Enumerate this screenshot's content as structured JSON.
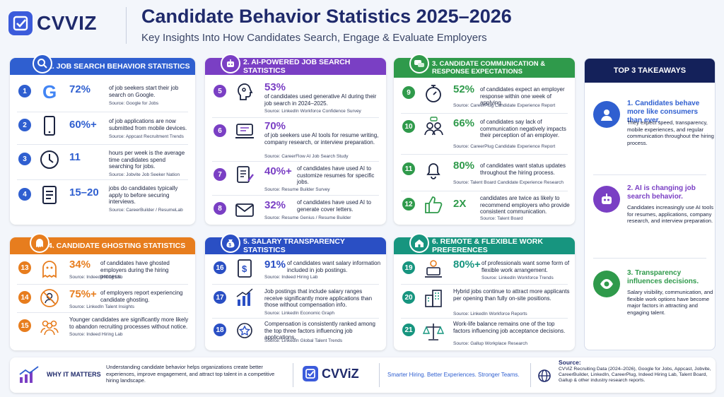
{
  "brand": {
    "name": "CVVIZ"
  },
  "header": {
    "title": "Candidate Behavior Statistics 2025–2026",
    "subtitle": "Key Insights Into How Candidates Search, Engage & Evaluate Employers"
  },
  "sections": [
    {
      "title": "1. JOB SEARCH BEHAVIOR STATISTICS",
      "icon": "search-icon",
      "items": [
        {
          "num": "1",
          "icon": "google-icon",
          "stat": "72%",
          "desc": "of job seekers start their job search on Google.",
          "source": "Source: Google for Jobs"
        },
        {
          "num": "2",
          "icon": "smartphone-icon",
          "stat": "60%+",
          "desc": "of job applications are now submitted from mobile devices.",
          "source": "Source: Appcast Recruitment Trends"
        },
        {
          "num": "3",
          "icon": "clock-icon",
          "stat": "11",
          "desc": "hours per week is the average time candidates spend searching for jobs.",
          "source": "Source: Jobvite Job Seeker Nation"
        },
        {
          "num": "4",
          "icon": "document-list-icon",
          "stat": "15–20",
          "desc": "jobs do candidates typically apply to before securing interviews.",
          "source": "Source: CareerBuilder / ResumeLab"
        }
      ]
    },
    {
      "title": "2. AI-POWERED JOB SEARCH STATISTICS",
      "icon": "robot-icon",
      "items": [
        {
          "num": "5",
          "icon": "ai-brain-icon",
          "stat": "53%",
          "desc": "of candidates used generative AI during their job search in 2024–2025.",
          "source": "Source: LinkedIn Workforce Confidence Survey"
        },
        {
          "num": "6",
          "icon": "chat-laptop-icon",
          "stat": "70%",
          "desc": "of job seekers use AI tools for resume writing, company research, or interview preparation.",
          "source": "Source: CareerFlow AI Job Search Study"
        },
        {
          "num": "7",
          "icon": "resume-edit-icon",
          "stat": "40%+",
          "desc": "of candidates have used AI to customize resumes for specific jobs.",
          "source": "Source: Resume Builder Survey"
        },
        {
          "num": "8",
          "icon": "envelope-icon",
          "stat": "32%",
          "desc": "of candidates have used AI to generate cover letters.",
          "source": "Source: Resume Genius / Resume Builder"
        }
      ]
    },
    {
      "title": "3. CANDIDATE COMMUNICATION & RESPONSE EXPECTATIONS",
      "icon": "chat-bubbles-icon",
      "items": [
        {
          "num": "9",
          "icon": "stopwatch-icon",
          "stat": "52%",
          "desc": "of candidates expect an employer response within one week of applying.",
          "source": "Source: CareerPlug Candidate Experience Report"
        },
        {
          "num": "10",
          "icon": "people-chat-icon",
          "stat": "66%",
          "desc": "of candidates say lack of communication negatively impacts their perception of an employer.",
          "source": "Source: CareerPlug Candidate Experience Report"
        },
        {
          "num": "11",
          "icon": "bell-icon",
          "stat": "80%",
          "desc": "of candidates want status updates throughout the hiring process.",
          "source": "Source: Talent Board Candidate Experience Research"
        },
        {
          "num": "12",
          "icon": "thumbs-up-icon",
          "stat": "2X",
          "desc": "candidates are twice as likely to recommend employers who provide consistent communication.",
          "source": "Source: Talent Board"
        }
      ]
    },
    {
      "title": "4. CANDIDATE GHOSTING STATISTICS",
      "icon": "ghost-icon",
      "items": [
        {
          "num": "13",
          "icon": "ghost-icon",
          "stat": "34%",
          "desc": "of candidates have ghosted employers during the hiring process.",
          "source": "Source: Indeed Hiring Lab"
        },
        {
          "num": "14",
          "icon": "no-person-icon",
          "stat": "75%+",
          "desc": "of employers report experiencing candidate ghosting.",
          "source": "Source: LinkedIn Talent Insights"
        },
        {
          "num": "15",
          "icon": "group-icon",
          "stat": "",
          "desc": "Younger candidates are significantly more likely to abandon recruiting processes without notice.",
          "source": "Source: Indeed Hiring Lab"
        }
      ]
    },
    {
      "title": "5. SALARY TRANSPARENCY STATISTICS",
      "icon": "money-bag-icon",
      "items": [
        {
          "num": "16",
          "icon": "salary-document-icon",
          "stat": "91%",
          "desc": "of candidates want salary information included in job postings.",
          "source": "Source: Indeed Hiring Lab"
        },
        {
          "num": "17",
          "icon": "bar-chart-icon",
          "stat": "",
          "desc": "Job postings that include salary ranges receive significantly more applications than those without compensation info.",
          "source": "Source: LinkedIn Economic Graph"
        },
        {
          "num": "18",
          "icon": "star-badge-icon",
          "stat": "",
          "desc": "Compensation is consistently ranked among the top three factors influencing job applications.",
          "source": "Source: LinkedIn Global Talent Trends"
        }
      ]
    },
    {
      "title": "6. REMOTE & FLEXIBLE WORK PREFERENCES",
      "icon": "home-icon",
      "items": [
        {
          "num": "19",
          "icon": "remote-worker-icon",
          "stat": "80%+",
          "desc": "of professionals want some form of flexible work arrangement.",
          "source": "Source: LinkedIn Workforce Trends"
        },
        {
          "num": "20",
          "icon": "office-building-icon",
          "stat": "",
          "desc": "Hybrid jobs continue to attract more applicants per opening than fully on-site positions.",
          "source": "Source: LinkedIn Workforce Reports"
        },
        {
          "num": "21",
          "icon": "balance-scale-icon",
          "stat": "",
          "desc": "Work-life balance remains one of the top factors influencing job acceptance decisions.",
          "source": "Source: Gallup Workplace Research"
        }
      ]
    }
  ],
  "takeaways": {
    "title": "TOP 3 TAKEAWAYS",
    "items": [
      {
        "icon": "person-icon",
        "title": "1. Candidates behave more like consumers than ever.",
        "desc": "They expect speed, transparency, mobile experiences, and regular communication throughout the hiring process."
      },
      {
        "icon": "robot-icon",
        "title": "2. AI is changing job search behavior.",
        "desc": "Candidates increasingly use AI tools for resumes, applications, company research, and interview preparation."
      },
      {
        "icon": "eye-icon",
        "title": "3. Transparency influences decisions.",
        "desc": "Salary visibility, communication, and flexible work options have become major factors in attracting and engaging talent."
      }
    ]
  },
  "footer": {
    "why_title": "WHY IT MATTERS",
    "why_text": "Understanding candidate behavior helps organizations create better experiences, improve engagement, and attract top talent in a competitive hiring landscape.",
    "logo": "CVViZ",
    "tagline": "Smarter Hiring. Better Experiences. Stronger Teams.",
    "source_title": "Source:",
    "source_text": "CVViZ Recruiting Data (2024–2026), Google for Jobs, Appcast, Jobvite, CareerBuilder, LinkedIn, CareerPlug, Indeed Hiring Lab, Talent Board, Gallup & other industry research reports."
  },
  "colors": {
    "blue": "#2f5fd0",
    "purple": "#7a3fc4",
    "green": "#2f9a4b",
    "orange": "#e77d1e",
    "navy": "#2a4fc4",
    "teal": "#17957f",
    "dark": "#14215a"
  }
}
